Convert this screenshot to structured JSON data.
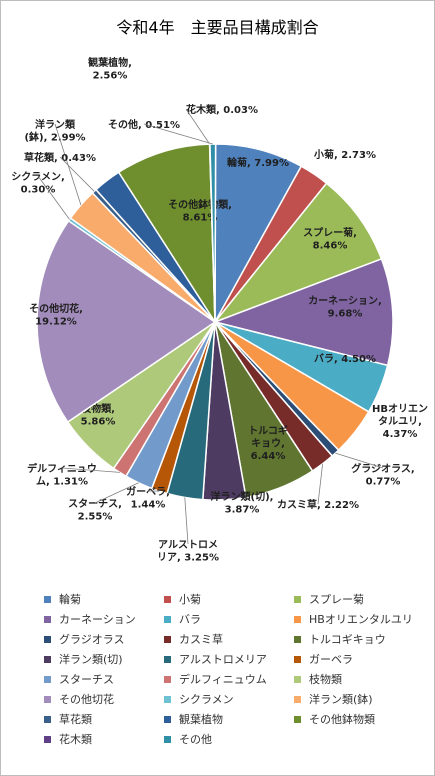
{
  "chart_data": {
    "type": "pie",
    "title": "令和4年　主要品目構成割合",
    "legend_position": "bottom",
    "series": [
      {
        "name": "輪菊",
        "value": 7.99,
        "color": "#4f81bd",
        "label": [
          "輪菊, 7.99%"
        ]
      },
      {
        "name": "小菊",
        "value": 2.73,
        "color": "#c0504d",
        "label": [
          "小菊, 2.73%"
        ]
      },
      {
        "name": "スプレー菊",
        "value": 8.46,
        "color": "#9bbb59",
        "label": [
          "スプレー菊,",
          "8.46%"
        ]
      },
      {
        "name": "カーネーション",
        "value": 9.68,
        "color": "#8064a2",
        "label": [
          "カーネーション,",
          "9.68%"
        ]
      },
      {
        "name": "バラ",
        "value": 4.5,
        "color": "#4bacc6",
        "label": [
          "バラ, 4.50%"
        ]
      },
      {
        "name": "HBオリエンタルユリ",
        "value": 4.37,
        "color": "#f79646",
        "label": [
          "HBオリエン",
          "タルユリ,",
          "4.37%"
        ]
      },
      {
        "name": "グラジオラス",
        "value": 0.77,
        "color": "#2c4d75",
        "label": [
          "グラジオラス,",
          "0.77%"
        ]
      },
      {
        "name": "カスミ草",
        "value": 2.22,
        "color": "#772c2a",
        "label": [
          "カスミ草, 2.22%"
        ]
      },
      {
        "name": "トルコギキョウ",
        "value": 6.44,
        "color": "#5f7530",
        "label": [
          "トルコギ",
          "キョウ,",
          "6.44%"
        ]
      },
      {
        "name": "洋ラン類(切)",
        "value": 3.87,
        "color": "#4d3b62",
        "label": [
          "洋ラン類(切),",
          "3.87%"
        ]
      },
      {
        "name": "アルストロメリア",
        "value": 3.25,
        "color": "#276a7c",
        "label": [
          "アルストロメ",
          "リア, 3.25%"
        ]
      },
      {
        "name": "ガーベラ",
        "value": 1.44,
        "color": "#b65708",
        "label": [
          "ガーベラ,",
          "1.44%"
        ]
      },
      {
        "name": "スターチス",
        "value": 2.55,
        "color": "#729aca",
        "label": [
          "スターチス,",
          "2.55%"
        ]
      },
      {
        "name": "デルフィニュウム",
        "value": 1.31,
        "color": "#cd7371",
        "label": [
          "デルフィニュウ",
          "ム, 1.31%"
        ]
      },
      {
        "name": "枝物類",
        "value": 5.86,
        "color": "#afc97a",
        "label": [
          "枝物類,",
          "5.86%"
        ]
      },
      {
        "name": "その他切花",
        "value": 19.12,
        "color": "#a18cbb",
        "label": [
          "その他切花,",
          "19.12%"
        ]
      },
      {
        "name": "シクラメン",
        "value": 0.3,
        "color": "#6ec0d3",
        "label": [
          "シクラメン,",
          "0.30%"
        ]
      },
      {
        "name": "洋ラン類(鉢)",
        "value": 2.99,
        "color": "#f9ab6c",
        "label": [
          "洋ラン類",
          "(鉢), 2.99%"
        ]
      },
      {
        "name": "草花類",
        "value": 0.43,
        "color": "#3a5f8a",
        "label": [
          "草花類, 0.43%"
        ]
      },
      {
        "name": "観葉植物",
        "value": 2.56,
        "color": "#2f5f9a",
        "label": [
          "観葉植物,",
          "2.56%"
        ]
      },
      {
        "name": "その他鉢物類",
        "value": 8.61,
        "color": "#6f8f2f",
        "label": [
          "その他鉢物類,",
          "8.61%"
        ]
      },
      {
        "name": "花木類",
        "value": 0.03,
        "color": "#5f3f86",
        "label": [
          "花木類, 0.03%"
        ]
      },
      {
        "name": "その他",
        "value": 0.51,
        "color": "#2f8fa6",
        "label": [
          "その他, 0.51%"
        ]
      }
    ]
  }
}
